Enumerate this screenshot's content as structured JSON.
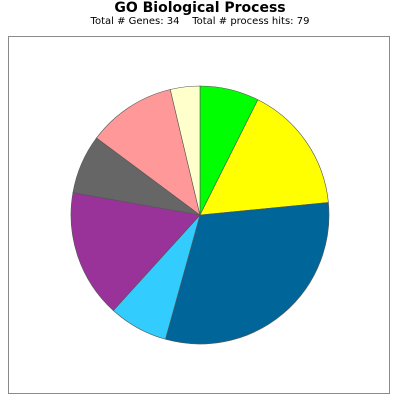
{
  "chart_data": {
    "type": "pie",
    "title": "GO Biological Process",
    "subtitle": "Total # Genes: 34    Total # process hits: 79",
    "legend": "none",
    "slices": [
      {
        "value": 6,
        "color": "#00ff00"
      },
      {
        "value": 13,
        "color": "#ffff00"
      },
      {
        "value": 25,
        "color": "#006699"
      },
      {
        "value": 6,
        "color": "#33ccff"
      },
      {
        "value": 13,
        "color": "#993399"
      },
      {
        "value": 6,
        "color": "#666666"
      },
      {
        "value": 9,
        "color": "#ff9999"
      },
      {
        "value": 3,
        "color": "#ffffcc"
      }
    ]
  }
}
